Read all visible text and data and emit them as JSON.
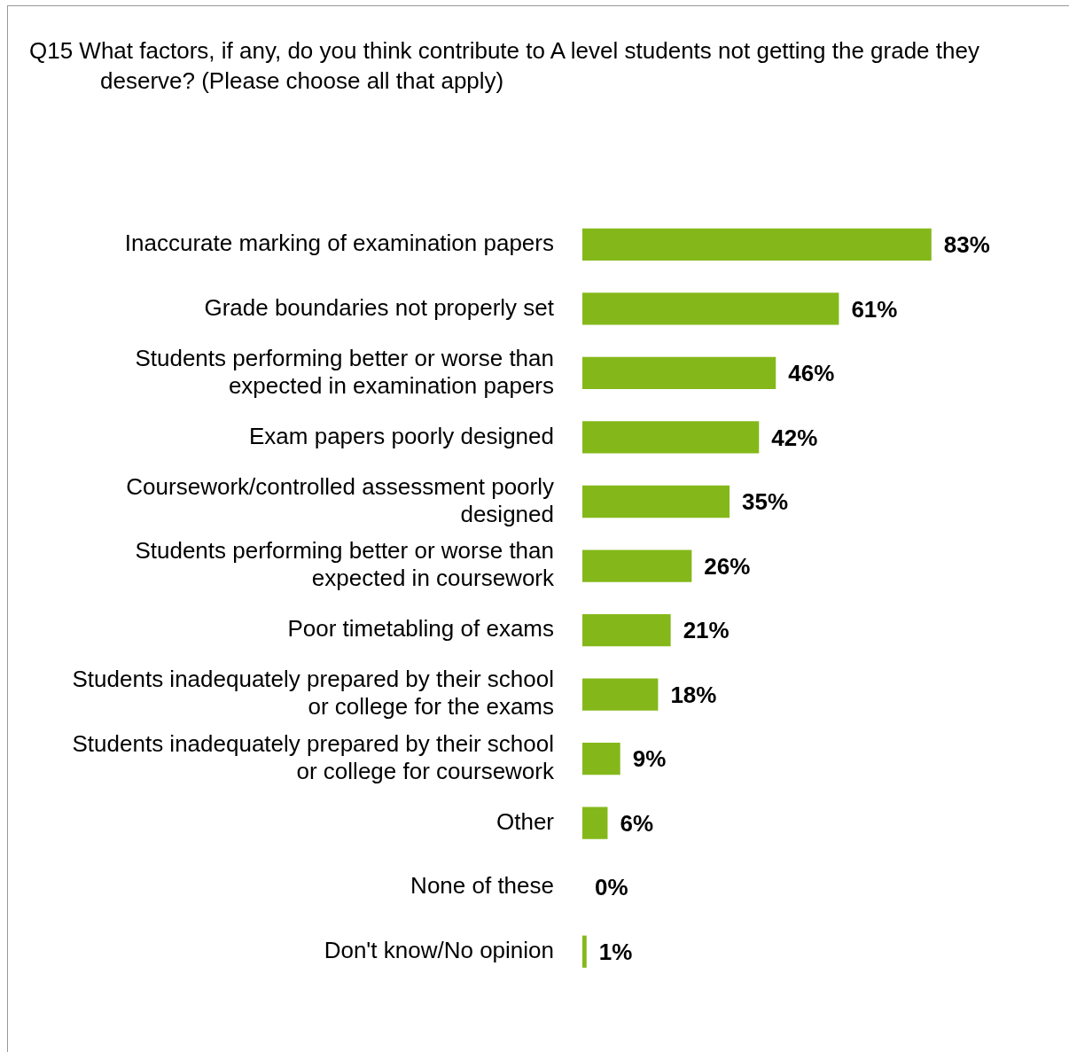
{
  "chart_data": {
    "type": "bar",
    "orientation": "horizontal",
    "tick_labels": "y",
    "data_labels": true,
    "legend": false,
    "title": "Q15 What factors, if any, do you think contribute to A level students not getting the grade they deserve? (Please choose all that apply)",
    "categories": [
      "Inaccurate marking of examination papers",
      "Grade boundaries not properly set",
      "Students performing better or worse than expected in examination papers",
      "Exam papers poorly designed",
      "Coursework/controlled assessment poorly designed",
      "Students performing better or worse than expected in coursework",
      "Poor timetabling of exams",
      "Students inadequately prepared by their school or college for the exams",
      "Students inadequately prepared by their school or college for coursework",
      "Other",
      "None of these",
      "Don't know/No opinion"
    ],
    "values": [
      83,
      61,
      46,
      42,
      35,
      26,
      21,
      18,
      9,
      6,
      0,
      1
    ],
    "value_labels": [
      "83%",
      "61%",
      "46%",
      "42%",
      "35%",
      "26%",
      "21%",
      "18%",
      "9%",
      "6%",
      "0%",
      "1%"
    ],
    "color": "#84b81a"
  }
}
